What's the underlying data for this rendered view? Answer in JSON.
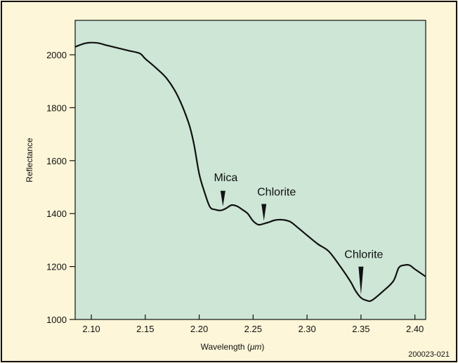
{
  "colors": {
    "page_background": "#fdf6d8",
    "plot_background": "#cde6d6",
    "line": "#111111"
  },
  "figure_id": "200023-021",
  "chart_data": {
    "type": "line",
    "title": "",
    "xlabel_prefix": "Wavelength (",
    "xlabel_unit": "μm",
    "xlabel_suffix": ")",
    "ylabel": "Reflectance",
    "xlim": [
      2.085,
      2.41
    ],
    "ylim": [
      1000,
      2130
    ],
    "x_ticks": [
      2.1,
      2.15,
      2.2,
      2.25,
      2.3,
      2.35,
      2.4
    ],
    "x_tick_labels": [
      "2.10",
      "2.15",
      "2.20",
      "2.25",
      "2.30",
      "2.35",
      "2.40"
    ],
    "y_ticks": [
      1000,
      1200,
      1400,
      1600,
      1800,
      2000
    ],
    "y_tick_labels": [
      "1000",
      "1200",
      "1400",
      "1600",
      "1800",
      "2000"
    ],
    "grid": false,
    "series": [
      {
        "x": [
          2.085,
          2.095,
          2.105,
          2.115,
          2.125,
          2.135,
          2.145,
          2.15,
          2.16,
          2.17,
          2.18,
          2.19,
          2.195,
          2.2,
          2.205,
          2.21,
          2.215,
          2.22,
          2.225,
          2.23,
          2.235,
          2.24,
          2.245,
          2.25,
          2.255,
          2.26,
          2.265,
          2.27,
          2.275,
          2.28,
          2.285,
          2.29,
          2.3,
          2.31,
          2.32,
          2.33,
          2.34,
          2.345,
          2.35,
          2.355,
          2.36,
          2.37,
          2.38,
          2.385,
          2.39,
          2.395,
          2.4,
          2.41
        ],
        "y": [
          2030,
          2044,
          2045,
          2035,
          2025,
          2015,
          2005,
          1985,
          1950,
          1910,
          1845,
          1745,
          1665,
          1550,
          1480,
          1425,
          1415,
          1412,
          1420,
          1432,
          1428,
          1415,
          1400,
          1372,
          1358,
          1362,
          1368,
          1375,
          1377,
          1375,
          1368,
          1352,
          1318,
          1285,
          1258,
          1205,
          1145,
          1108,
          1082,
          1072,
          1072,
          1105,
          1145,
          1195,
          1205,
          1205,
          1190,
          1162
        ]
      }
    ],
    "annotations": [
      {
        "text": "Mica",
        "x": 2.222,
        "y": 1417
      },
      {
        "text": "Chlorite",
        "x": 2.26,
        "y": 1362
      },
      {
        "text": "Chlorite",
        "x": 2.35,
        "y": 1083
      }
    ]
  }
}
